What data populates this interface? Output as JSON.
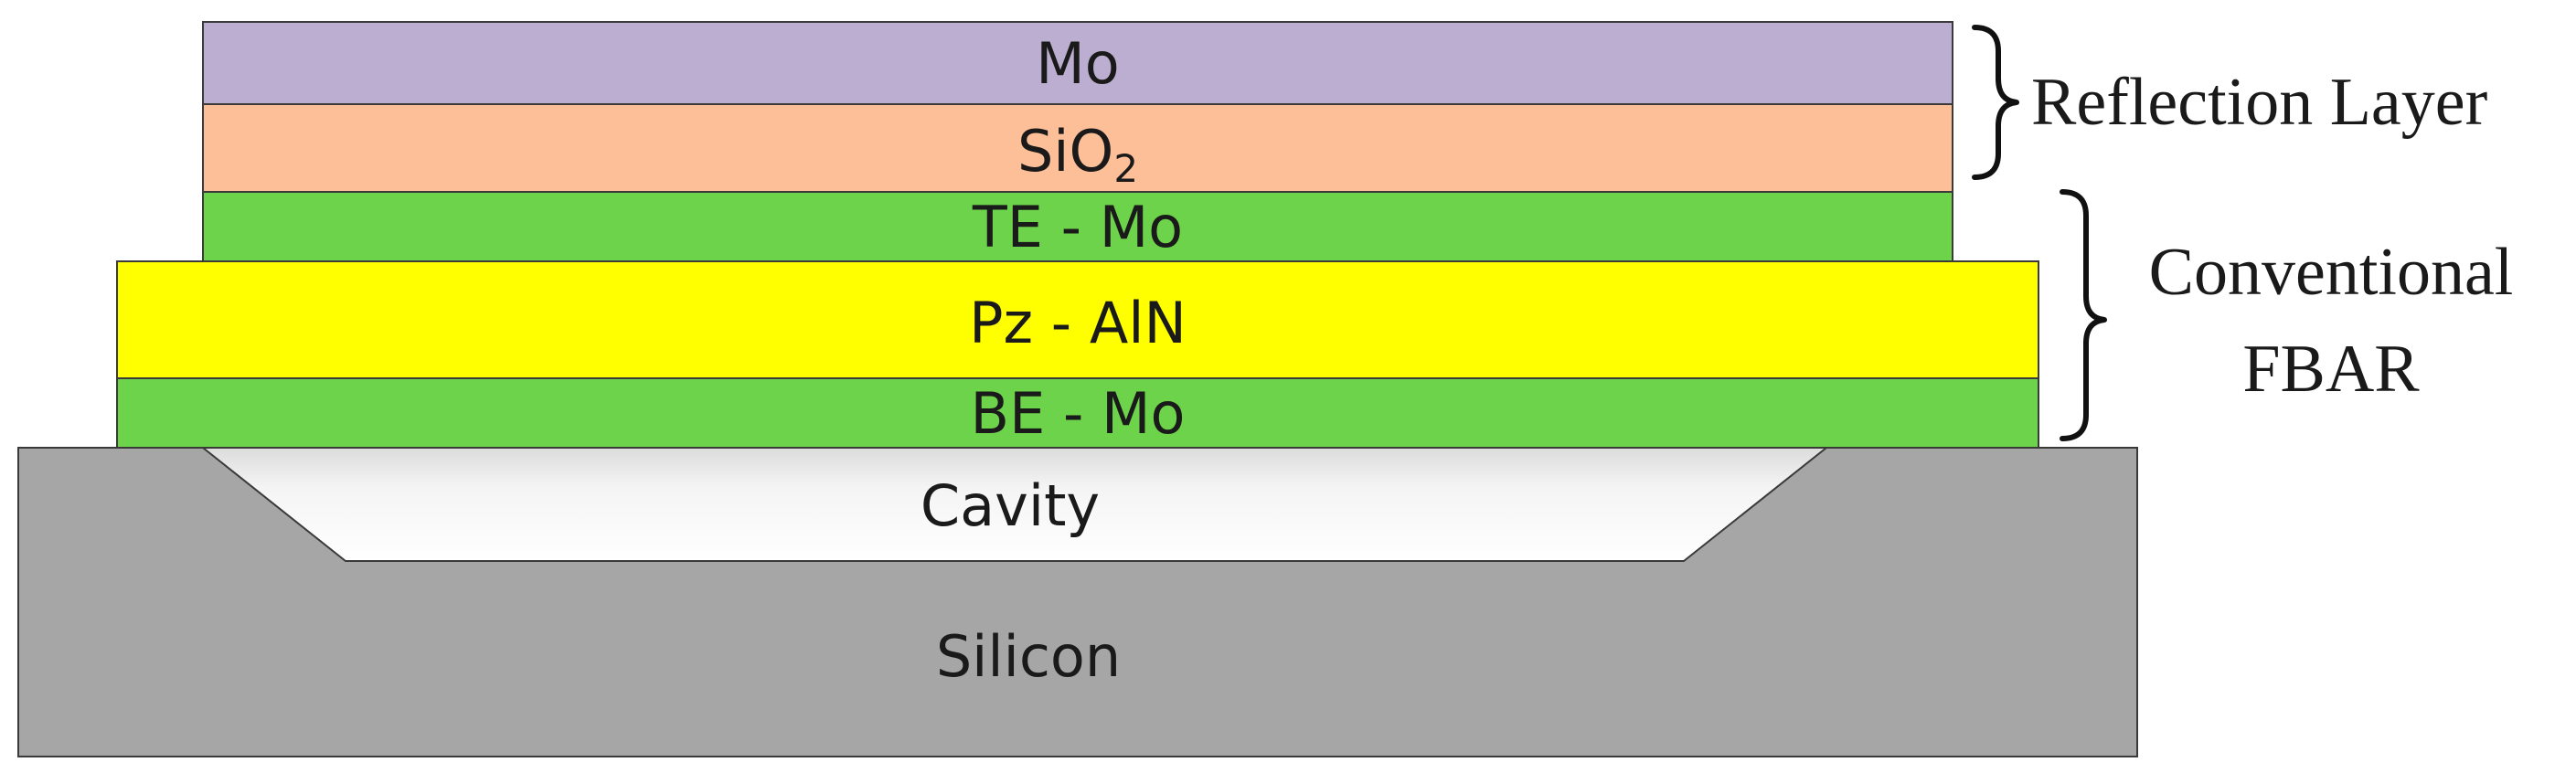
{
  "layers": {
    "mo_top": {
      "label": "Mo",
      "color": "#bcaed0"
    },
    "sio2": {
      "label_main": "SiO",
      "label_sub": "2",
      "color": "#fdbf98"
    },
    "te_mo": {
      "label": "TE - Mo",
      "color": "#6dd34a"
    },
    "pz_aln": {
      "label": "Pz - AlN",
      "color": "#ffff00"
    },
    "be_mo": {
      "label": "BE - Mo",
      "color": "#6dd34a"
    },
    "cavity": {
      "label": "Cavity",
      "color": "#f7f7f7"
    },
    "silicon": {
      "label": "Silicon",
      "color": "#a6a6a6"
    }
  },
  "annotations": {
    "reflection_layer": "Reflection Layer",
    "conventional_fbar_line1": "Conventional",
    "conventional_fbar_line2": "FBAR"
  }
}
